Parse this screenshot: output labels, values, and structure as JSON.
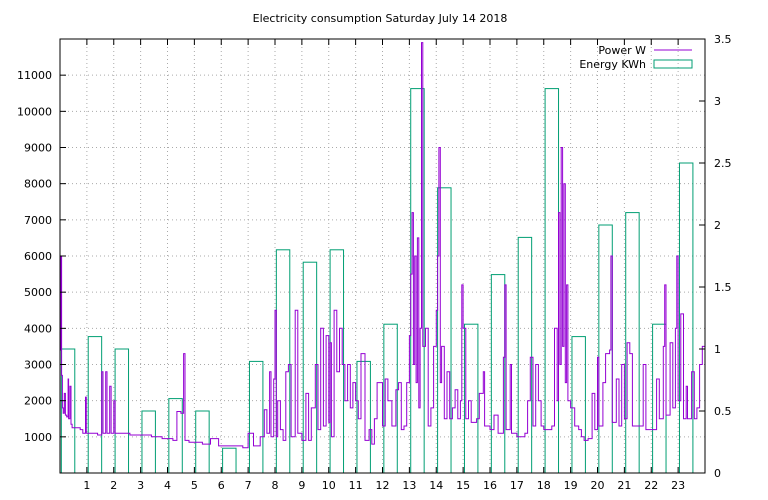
{
  "chart_data": {
    "type": "bar",
    "title": "Electricity consumption Saturday July 14 2018",
    "xlim": [
      0,
      24
    ],
    "x_ticks": [
      1,
      2,
      3,
      4,
      5,
      6,
      7,
      8,
      9,
      10,
      11,
      12,
      13,
      14,
      15,
      16,
      17,
      18,
      19,
      20,
      21,
      22,
      23
    ],
    "y_left": {
      "lim": [
        0,
        12000
      ],
      "ticks": [
        1000,
        2000,
        3000,
        4000,
        5000,
        6000,
        7000,
        8000,
        9000,
        10000,
        11000
      ]
    },
    "y_right": {
      "lim": [
        0,
        3.5
      ],
      "ticks": [
        "0",
        "0.5",
        "1",
        "1.5",
        "2",
        "2.5",
        "3",
        "3.5"
      ]
    },
    "grid": true,
    "legend_position": "top-right",
    "colors": {
      "power": "#9400d3",
      "energy": "#009e73"
    },
    "series": [
      {
        "name": "Power W",
        "type": "line",
        "axis": "left",
        "points": [
          [
            0.0,
            3400
          ],
          [
            0.03,
            6000
          ],
          [
            0.06,
            2700
          ],
          [
            0.09,
            1800
          ],
          [
            0.12,
            1650
          ],
          [
            0.16,
            2200
          ],
          [
            0.2,
            1600
          ],
          [
            0.25,
            1550
          ],
          [
            0.3,
            2600
          ],
          [
            0.32,
            1500
          ],
          [
            0.37,
            2400
          ],
          [
            0.41,
            1350
          ],
          [
            0.45,
            1250
          ],
          [
            0.6,
            1250
          ],
          [
            0.75,
            1200
          ],
          [
            0.85,
            1100
          ],
          [
            0.95,
            2100
          ],
          [
            0.98,
            1100
          ],
          [
            1.2,
            1100
          ],
          [
            1.4,
            1050
          ],
          [
            1.55,
            2800
          ],
          [
            1.6,
            1100
          ],
          [
            1.7,
            2800
          ],
          [
            1.75,
            1100
          ],
          [
            1.85,
            2400
          ],
          [
            1.9,
            1100
          ],
          [
            2.0,
            2000
          ],
          [
            2.05,
            1100
          ],
          [
            2.3,
            1100
          ],
          [
            2.6,
            1050
          ],
          [
            3.0,
            1050
          ],
          [
            3.4,
            1000
          ],
          [
            3.8,
            950
          ],
          [
            4.0,
            950
          ],
          [
            4.2,
            900
          ],
          [
            4.35,
            1700
          ],
          [
            4.5,
            1650
          ],
          [
            4.6,
            3300
          ],
          [
            4.65,
            900
          ],
          [
            4.8,
            850
          ],
          [
            5.1,
            850
          ],
          [
            5.3,
            800
          ],
          [
            5.6,
            950
          ],
          [
            5.9,
            750
          ],
          [
            6.3,
            750
          ],
          [
            6.8,
            700
          ],
          [
            7.0,
            1100
          ],
          [
            7.2,
            750
          ],
          [
            7.45,
            1000
          ],
          [
            7.6,
            1750
          ],
          [
            7.7,
            1100
          ],
          [
            7.8,
            2800
          ],
          [
            7.85,
            1000
          ],
          [
            7.95,
            2600
          ],
          [
            8.0,
            4500
          ],
          [
            8.05,
            1000
          ],
          [
            8.1,
            2000
          ],
          [
            8.2,
            1200
          ],
          [
            8.3,
            900
          ],
          [
            8.4,
            2800
          ],
          [
            8.5,
            3000
          ],
          [
            8.6,
            1000
          ],
          [
            8.75,
            4500
          ],
          [
            8.85,
            1100
          ],
          [
            9.0,
            900
          ],
          [
            9.15,
            2200
          ],
          [
            9.25,
            900
          ],
          [
            9.35,
            1800
          ],
          [
            9.5,
            3000
          ],
          [
            9.6,
            1200
          ],
          [
            9.7,
            4000
          ],
          [
            9.8,
            1300
          ],
          [
            9.9,
            3800
          ],
          [
            10.0,
            1400
          ],
          [
            10.05,
            3600
          ],
          [
            10.1,
            1000
          ],
          [
            10.2,
            4500
          ],
          [
            10.3,
            2800
          ],
          [
            10.4,
            4000
          ],
          [
            10.5,
            3000
          ],
          [
            10.6,
            2000
          ],
          [
            10.7,
            3000
          ],
          [
            10.8,
            1800
          ],
          [
            10.9,
            2500
          ],
          [
            11.0,
            2000
          ],
          [
            11.1,
            1500
          ],
          [
            11.2,
            3300
          ],
          [
            11.35,
            900
          ],
          [
            11.5,
            1200
          ],
          [
            11.6,
            800
          ],
          [
            11.7,
            1500
          ],
          [
            11.8,
            2500
          ],
          [
            12.0,
            1300
          ],
          [
            12.1,
            2600
          ],
          [
            12.2,
            2000
          ],
          [
            12.35,
            1300
          ],
          [
            12.5,
            2300
          ],
          [
            12.6,
            2500
          ],
          [
            12.7,
            1200
          ],
          [
            12.8,
            1300
          ],
          [
            12.9,
            2500
          ],
          [
            13.0,
            3800
          ],
          [
            13.05,
            5500
          ],
          [
            13.1,
            7200
          ],
          [
            13.15,
            3000
          ],
          [
            13.2,
            6000
          ],
          [
            13.25,
            2500
          ],
          [
            13.3,
            6500
          ],
          [
            13.35,
            1800
          ],
          [
            13.4,
            4000
          ],
          [
            13.45,
            11900
          ],
          [
            13.5,
            3500
          ],
          [
            13.6,
            4000
          ],
          [
            13.7,
            1300
          ],
          [
            13.8,
            1800
          ],
          [
            13.9,
            3500
          ],
          [
            14.0,
            4500
          ],
          [
            14.05,
            6000
          ],
          [
            14.1,
            9000
          ],
          [
            14.15,
            2500
          ],
          [
            14.2,
            3500
          ],
          [
            14.3,
            1500
          ],
          [
            14.4,
            2800
          ],
          [
            14.5,
            1500
          ],
          [
            14.6,
            1800
          ],
          [
            14.7,
            2300
          ],
          [
            14.8,
            1500
          ],
          [
            14.9,
            2000
          ],
          [
            14.95,
            5200
          ],
          [
            15.0,
            4000
          ],
          [
            15.1,
            1500
          ],
          [
            15.2,
            2000
          ],
          [
            15.3,
            1400
          ],
          [
            15.5,
            1500
          ],
          [
            15.6,
            2200
          ],
          [
            15.75,
            2800
          ],
          [
            15.8,
            1300
          ],
          [
            16.0,
            1200
          ],
          [
            16.15,
            1600
          ],
          [
            16.3,
            1100
          ],
          [
            16.5,
            3200
          ],
          [
            16.55,
            5200
          ],
          [
            16.6,
            1200
          ],
          [
            16.75,
            3000
          ],
          [
            16.8,
            1100
          ],
          [
            17.0,
            1000
          ],
          [
            17.3,
            1100
          ],
          [
            17.4,
            2000
          ],
          [
            17.5,
            3200
          ],
          [
            17.6,
            1300
          ],
          [
            17.7,
            3000
          ],
          [
            17.8,
            2000
          ],
          [
            17.9,
            1300
          ],
          [
            18.0,
            1200
          ],
          [
            18.3,
            1300
          ],
          [
            18.4,
            4000
          ],
          [
            18.5,
            2000
          ],
          [
            18.55,
            7200
          ],
          [
            18.6,
            3000
          ],
          [
            18.65,
            9000
          ],
          [
            18.7,
            3500
          ],
          [
            18.75,
            8000
          ],
          [
            18.8,
            2500
          ],
          [
            18.85,
            5200
          ],
          [
            18.9,
            2000
          ],
          [
            19.0,
            1800
          ],
          [
            19.15,
            1300
          ],
          [
            19.3,
            1200
          ],
          [
            19.4,
            1000
          ],
          [
            19.5,
            900
          ],
          [
            19.65,
            950
          ],
          [
            19.8,
            2200
          ],
          [
            19.9,
            1200
          ],
          [
            20.0,
            3200
          ],
          [
            20.05,
            1300
          ],
          [
            20.2,
            2500
          ],
          [
            20.3,
            3300
          ],
          [
            20.45,
            3400
          ],
          [
            20.5,
            6000
          ],
          [
            20.55,
            1400
          ],
          [
            20.7,
            2600
          ],
          [
            20.8,
            1300
          ],
          [
            20.9,
            3000
          ],
          [
            21.0,
            1500
          ],
          [
            21.1,
            3600
          ],
          [
            21.2,
            3300
          ],
          [
            21.3,
            1300
          ],
          [
            21.5,
            1300
          ],
          [
            21.7,
            3000
          ],
          [
            21.8,
            1200
          ],
          [
            22.0,
            1200
          ],
          [
            22.2,
            2600
          ],
          [
            22.3,
            1500
          ],
          [
            22.45,
            3500
          ],
          [
            22.5,
            5200
          ],
          [
            22.55,
            1600
          ],
          [
            22.7,
            3600
          ],
          [
            22.8,
            1800
          ],
          [
            22.9,
            4000
          ],
          [
            22.95,
            6000
          ],
          [
            23.0,
            2000
          ],
          [
            23.1,
            4400
          ],
          [
            23.2,
            1500
          ],
          [
            23.3,
            2400
          ],
          [
            23.35,
            1500
          ],
          [
            23.5,
            2800
          ],
          [
            23.6,
            1500
          ],
          [
            23.7,
            1800
          ],
          [
            23.8,
            3000
          ],
          [
            23.9,
            3500
          ],
          [
            24.0,
            3600
          ]
        ]
      },
      {
        "name": "Energy KWh",
        "type": "bar",
        "axis": "right",
        "x": [
          0,
          1,
          2,
          3,
          4,
          5,
          6,
          7,
          8,
          9,
          10,
          11,
          12,
          13,
          14,
          15,
          16,
          17,
          18,
          19,
          20,
          21,
          22,
          23
        ],
        "values": [
          1.0,
          1.1,
          1.0,
          0.5,
          0.6,
          0.5,
          0.2,
          0.9,
          1.8,
          1.7,
          1.8,
          0.9,
          1.2,
          3.1,
          2.3,
          1.2,
          1.6,
          1.9,
          3.1,
          1.1,
          2.0,
          2.1,
          1.2,
          2.5
        ]
      }
    ]
  }
}
